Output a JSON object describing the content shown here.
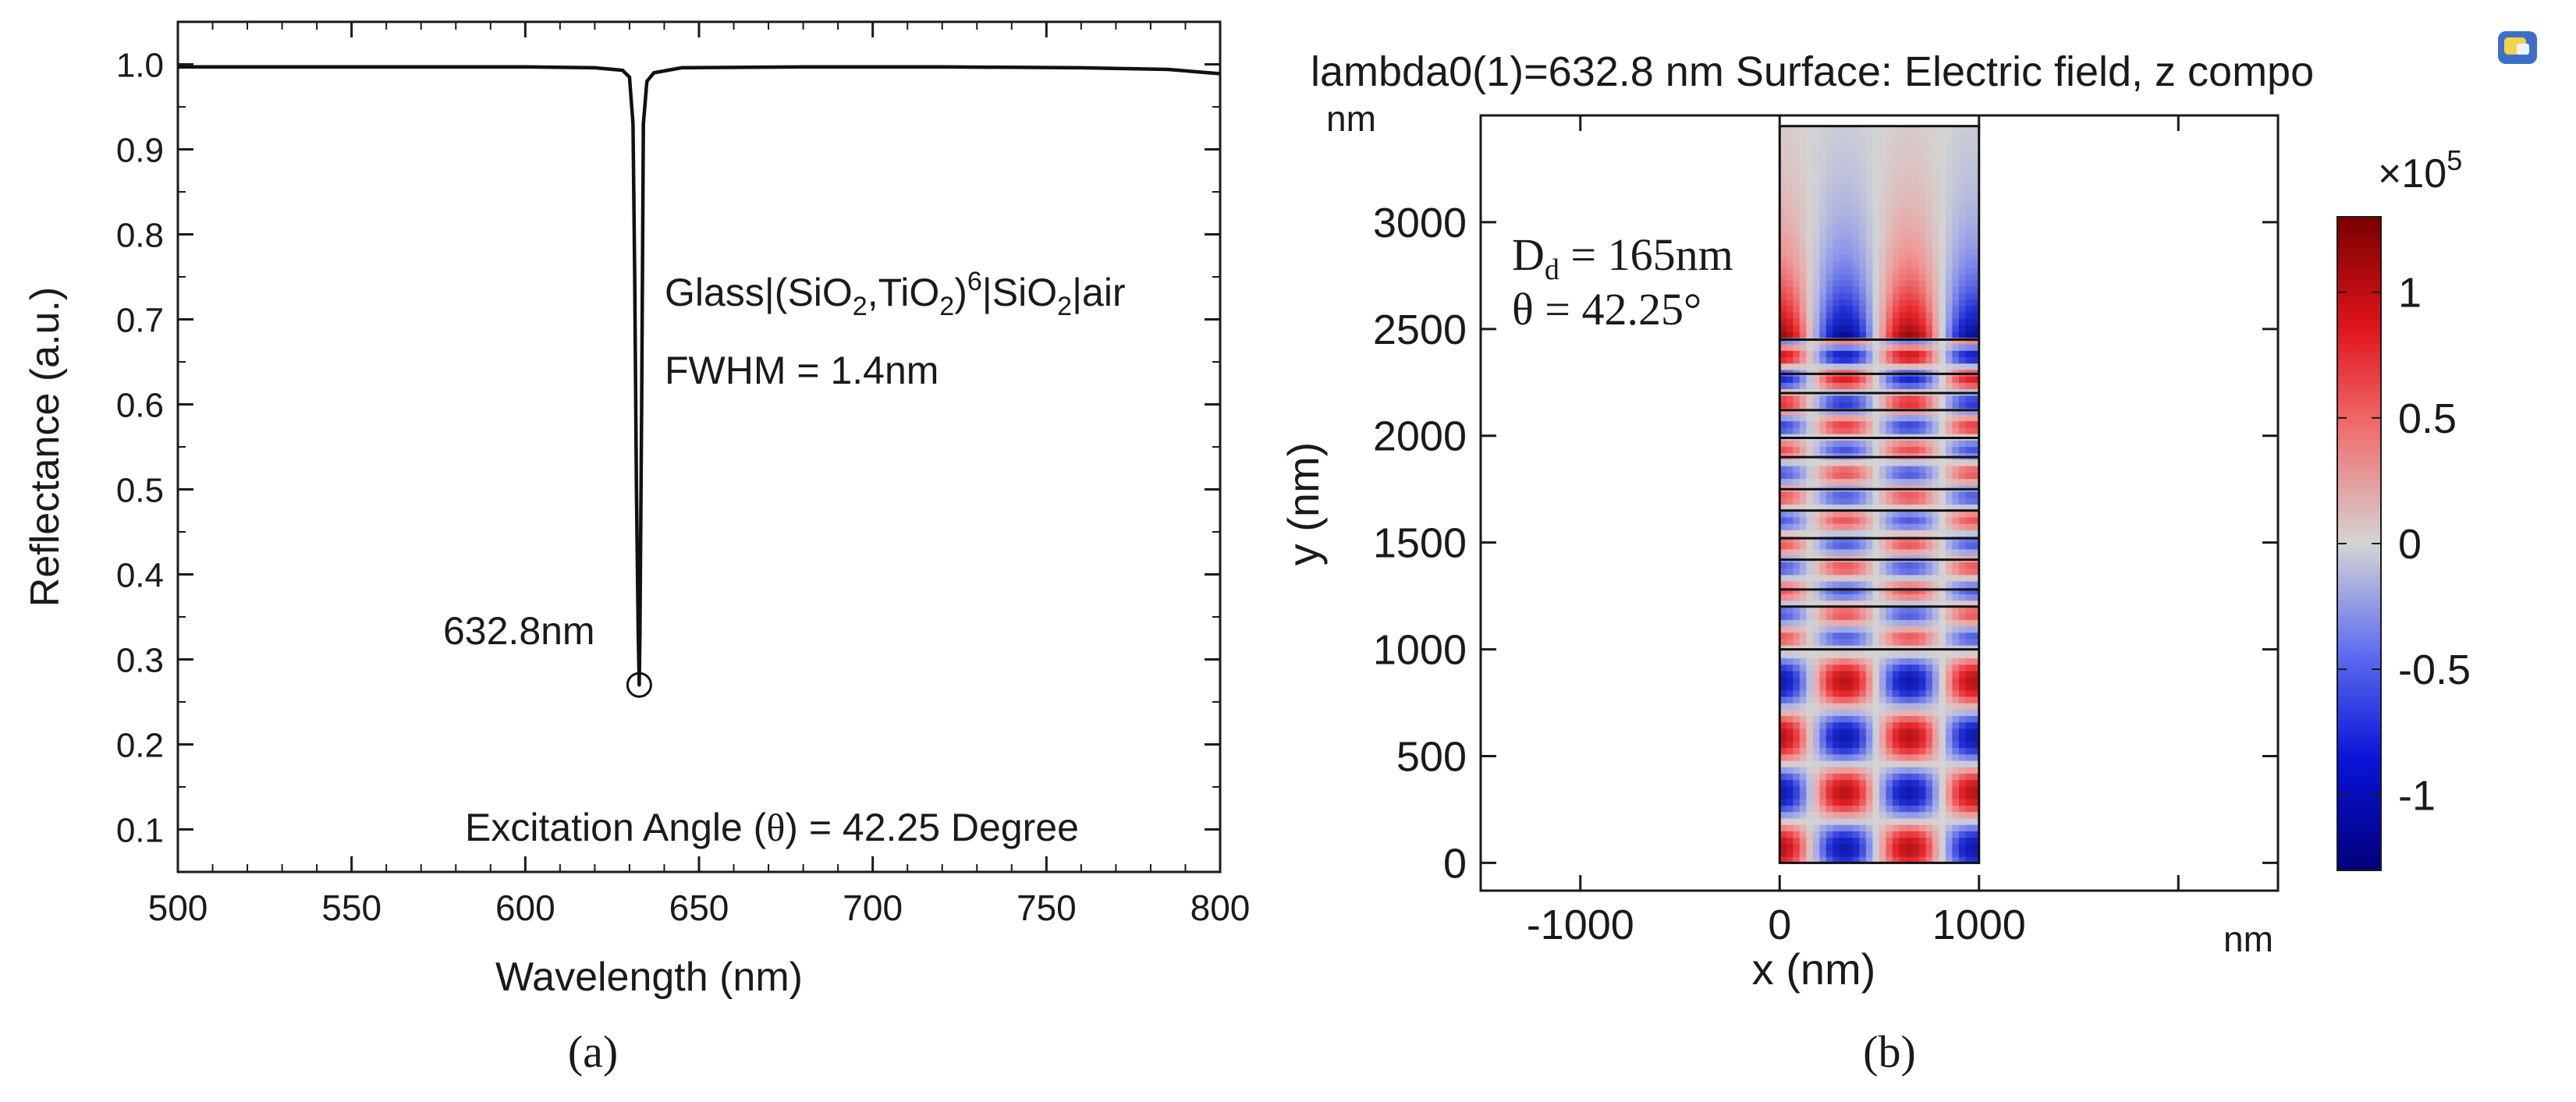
{
  "colors": {
    "axis": "#1a1a1a",
    "line": "#111111",
    "field_positive": "#e8262b",
    "field_negative": "#1f2fd6",
    "field_zero": "#d4d4d4",
    "colorbar_top": "#7a0000",
    "colorbar_bottom": "#00007a"
  },
  "chart_data": [
    {
      "type": "line",
      "panel_label": "(a)",
      "xlabel": "Wavelength (nm)",
      "ylabel": "Reflectance (a.u.)",
      "xlim": [
        500,
        800
      ],
      "ylim": [
        0.05,
        1.05
      ],
      "xticks": [
        500,
        550,
        600,
        650,
        700,
        750,
        800
      ],
      "yticks": [
        0.1,
        0.2,
        0.3,
        0.4,
        0.5,
        0.6,
        0.7,
        0.8,
        0.9,
        1.0
      ],
      "ytick_labels": [
        "0.1",
        "0.2",
        "0.3",
        "0.4",
        "0.5",
        "0.6",
        "0.7",
        "0.8",
        "0.9",
        "1.0"
      ],
      "series": [
        {
          "name": "Reflectance",
          "x": [
            500,
            550,
            600,
            620,
            628,
            630,
            631,
            631.5,
            632,
            632.5,
            632.8,
            633,
            633.5,
            634,
            635,
            637,
            645,
            680,
            720,
            760,
            785,
            800
          ],
          "y": [
            0.997,
            0.997,
            0.997,
            0.996,
            0.993,
            0.985,
            0.93,
            0.75,
            0.5,
            0.33,
            0.27,
            0.33,
            0.6,
            0.93,
            0.98,
            0.99,
            0.996,
            0.997,
            0.997,
            0.996,
            0.994,
            0.989
          ]
        }
      ],
      "annotations": {
        "structure_prefix": "Glass|(SiO",
        "structure_sub1": "2",
        "structure_mid1": ",TiO",
        "structure_sub2": "2",
        "structure_mid2": ")",
        "structure_sup": "6",
        "structure_mid3": "|SiO",
        "structure_sub3": "2",
        "structure_suffix": "|air",
        "fwhm": "FWHM = 1.4nm",
        "dip_label": "632.8nm",
        "dip_x": 632.8,
        "dip_y": 0.27,
        "angle_prefix": "Excitation Angle (",
        "angle_symbol": "θ",
        "angle_suffix": ") = 42.25 Degree"
      }
    },
    {
      "type": "heatmap",
      "panel_label": "(b)",
      "title": "lambda0(1)=632.8 nm Surface: Electric field, z compo",
      "xlabel": "x (nm)",
      "ylabel": "y (nm)",
      "x_unit": "nm",
      "y_unit": "nm",
      "xlim": [
        -1500,
        2500
      ],
      "ylim": [
        -130,
        3500
      ],
      "xticks": [
        -1000,
        0,
        1000
      ],
      "xtick_labels": [
        "-1000",
        "0",
        "1000"
      ],
      "yticks": [
        0,
        500,
        1000,
        1500,
        2000,
        2500,
        3000
      ],
      "ytick_labels": [
        "0",
        "500",
        "1000",
        "1500",
        "2000",
        "2500",
        "3000"
      ],
      "domain_x": [
        0,
        1000
      ],
      "domain_y": [
        0,
        3450
      ],
      "layer_boundaries": [
        1000,
        1200,
        1280,
        1420,
        1520,
        1650,
        1750,
        1900,
        1990,
        2120,
        2200,
        2290,
        2450
      ],
      "field_model": {
        "x_period_nm": 650,
        "glass_y_max": 1000,
        "glass_y_period_nm": 520,
        "stack_y_range": [
          1000,
          2450
        ],
        "stack_y_period_nm": 220,
        "air_y_range": [
          2450,
          3450
        ]
      },
      "annotations": {
        "dd_prefix": "D",
        "dd_sub": "d",
        "dd_value": " = 165nm",
        "theta": "θ = 42.25°"
      },
      "colorbar": {
        "multiplier_prefix": "×10",
        "multiplier_exp": "5",
        "range": [
          -1.3,
          1.3
        ],
        "ticks": [
          1,
          0.5,
          0,
          -0.5,
          -1
        ],
        "tick_labels": [
          "1",
          "0.5",
          "0",
          "-0.5",
          "-1"
        ]
      }
    }
  ]
}
